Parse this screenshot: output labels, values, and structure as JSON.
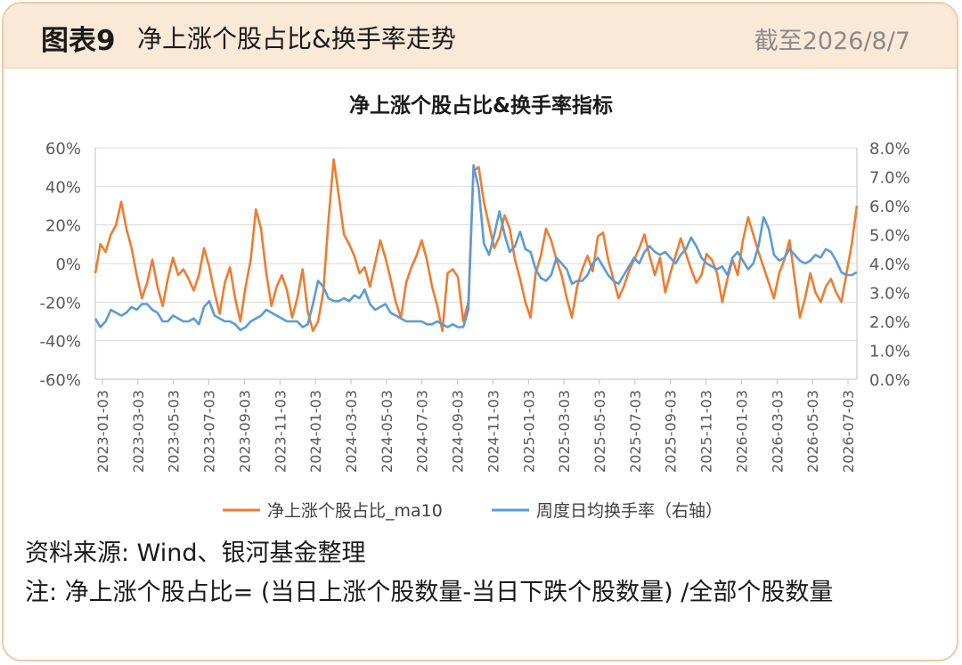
{
  "header": {
    "figure_label": "图表9",
    "title": "净上涨个股占比&换手率走势",
    "as_of": "截至2026/8/7"
  },
  "footer": {
    "source": "资料来源: Wind、银河基金整理",
    "note": "注: 净上涨个股占比= (当日上涨个股数量-当日下跌个股数量) /全部个股数量"
  },
  "colors": {
    "orange": "#ed7d31",
    "blue": "#5b9bd5",
    "header_bg": "#fbe9d8",
    "border": "#f0c9a3"
  },
  "chart_data": {
    "type": "line",
    "title": "净上涨个股占比&换手率指标",
    "y_left": {
      "ylim": [
        -60,
        60
      ],
      "ticks": [
        "60%",
        "40%",
        "20%",
        "0%",
        "-20%",
        "-40%",
        "-60%"
      ]
    },
    "y_right": {
      "ylim": [
        0,
        8
      ],
      "ticks": [
        "8.0%",
        "7.0%",
        "6.0%",
        "5.0%",
        "4.0%",
        "3.0%",
        "2.0%",
        "1.0%",
        "0.0%"
      ]
    },
    "x_ticks": [
      "2023-01-03",
      "2023-03-03",
      "2023-05-03",
      "2023-07-03",
      "2023-09-03",
      "2023-11-03",
      "2024-01-03",
      "2024-03-03",
      "2024-05-03",
      "2024-07-03",
      "2024-09-03",
      "2024-11-03",
      "2025-01-03",
      "2025-03-03",
      "2025-05-03",
      "2025-07-03",
      "2025-09-03",
      "2025-11-03",
      "2026-01-03",
      "2026-03-03",
      "2026-05-03",
      "2026-07-03"
    ],
    "grid": true,
    "legend_position": "bottom",
    "series": [
      {
        "name": "净上涨个股占比_ma10",
        "axis": "left",
        "color": "#ed7d31",
        "points": [
          [
            0,
            -5
          ],
          [
            1,
            10
          ],
          [
            2,
            6
          ],
          [
            3,
            15
          ],
          [
            4,
            20
          ],
          [
            5,
            32
          ],
          [
            6,
            18
          ],
          [
            7,
            8
          ],
          [
            8,
            -6
          ],
          [
            9,
            -18
          ],
          [
            10,
            -10
          ],
          [
            11,
            2
          ],
          [
            12,
            -12
          ],
          [
            13,
            -22
          ],
          [
            14,
            -8
          ],
          [
            15,
            3
          ],
          [
            16,
            -6
          ],
          [
            17,
            -3
          ],
          [
            18,
            -8
          ],
          [
            19,
            -14
          ],
          [
            20,
            -6
          ],
          [
            21,
            8
          ],
          [
            22,
            -2
          ],
          [
            23,
            -15
          ],
          [
            24,
            -26
          ],
          [
            25,
            -10
          ],
          [
            26,
            -2
          ],
          [
            27,
            -18
          ],
          [
            28,
            -30
          ],
          [
            29,
            -12
          ],
          [
            30,
            2
          ],
          [
            31,
            28
          ],
          [
            32,
            18
          ],
          [
            33,
            -5
          ],
          [
            34,
            -22
          ],
          [
            35,
            -12
          ],
          [
            36,
            -6
          ],
          [
            37,
            -14
          ],
          [
            38,
            -28
          ],
          [
            39,
            -18
          ],
          [
            40,
            -3
          ],
          [
            41,
            -25
          ],
          [
            42,
            -35
          ],
          [
            43,
            -30
          ],
          [
            44,
            -15
          ],
          [
            45,
            22
          ],
          [
            46,
            54
          ],
          [
            47,
            35
          ],
          [
            48,
            15
          ],
          [
            49,
            10
          ],
          [
            50,
            4
          ],
          [
            51,
            -5
          ],
          [
            52,
            -2
          ],
          [
            53,
            -12
          ],
          [
            54,
            0
          ],
          [
            55,
            12
          ],
          [
            56,
            3
          ],
          [
            57,
            -8
          ],
          [
            58,
            -20
          ],
          [
            59,
            -28
          ],
          [
            60,
            -10
          ],
          [
            61,
            -2
          ],
          [
            62,
            4
          ],
          [
            63,
            12
          ],
          [
            64,
            2
          ],
          [
            65,
            -12
          ],
          [
            66,
            -22
          ],
          [
            67,
            -35
          ],
          [
            68,
            -5
          ],
          [
            69,
            -3
          ],
          [
            70,
            -7
          ],
          [
            71,
            -30
          ],
          [
            72,
            -20
          ],
          [
            73,
            48
          ],
          [
            74,
            50
          ],
          [
            75,
            32
          ],
          [
            76,
            20
          ],
          [
            77,
            8
          ],
          [
            78,
            14
          ],
          [
            79,
            25
          ],
          [
            80,
            18
          ],
          [
            81,
            2
          ],
          [
            82,
            -8
          ],
          [
            83,
            -20
          ],
          [
            84,
            -28
          ],
          [
            85,
            -5
          ],
          [
            86,
            4
          ],
          [
            87,
            18
          ],
          [
            88,
            12
          ],
          [
            89,
            2
          ],
          [
            90,
            -6
          ],
          [
            91,
            -18
          ],
          [
            92,
            -28
          ],
          [
            93,
            -12
          ],
          [
            94,
            -3
          ],
          [
            95,
            4
          ],
          [
            96,
            -4
          ],
          [
            97,
            14
          ],
          [
            98,
            16
          ],
          [
            99,
            2
          ],
          [
            100,
            -8
          ],
          [
            101,
            -18
          ],
          [
            102,
            -12
          ],
          [
            103,
            -4
          ],
          [
            104,
            2
          ],
          [
            105,
            8
          ],
          [
            106,
            15
          ],
          [
            107,
            4
          ],
          [
            108,
            -6
          ],
          [
            109,
            3
          ],
          [
            110,
            -15
          ],
          [
            111,
            -5
          ],
          [
            112,
            4
          ],
          [
            113,
            13
          ],
          [
            114,
            5
          ],
          [
            115,
            -3
          ],
          [
            116,
            -10
          ],
          [
            117,
            -6
          ],
          [
            118,
            5
          ],
          [
            119,
            2
          ],
          [
            120,
            -5
          ],
          [
            121,
            -20
          ],
          [
            122,
            -8
          ],
          [
            123,
            2
          ],
          [
            124,
            -6
          ],
          [
            125,
            12
          ],
          [
            126,
            24
          ],
          [
            127,
            15
          ],
          [
            128,
            6
          ],
          [
            129,
            -2
          ],
          [
            130,
            -10
          ],
          [
            131,
            -18
          ],
          [
            132,
            -5
          ],
          [
            133,
            2
          ],
          [
            134,
            12
          ],
          [
            135,
            -8
          ],
          [
            136,
            -28
          ],
          [
            137,
            -18
          ],
          [
            138,
            -5
          ],
          [
            139,
            -15
          ],
          [
            140,
            -20
          ],
          [
            141,
            -12
          ],
          [
            142,
            -8
          ],
          [
            143,
            -15
          ],
          [
            144,
            -20
          ],
          [
            145,
            -5
          ],
          [
            146,
            10
          ],
          [
            147,
            30
          ]
        ]
      },
      {
        "name": "周度日均换手率（右轴）",
        "axis": "right",
        "color": "#5b9bd5",
        "points": [
          [
            0,
            2.1
          ],
          [
            1,
            1.8
          ],
          [
            2,
            2.0
          ],
          [
            3,
            2.4
          ],
          [
            4,
            2.3
          ],
          [
            5,
            2.2
          ],
          [
            6,
            2.3
          ],
          [
            7,
            2.5
          ],
          [
            8,
            2.4
          ],
          [
            9,
            2.6
          ],
          [
            10,
            2.6
          ],
          [
            11,
            2.4
          ],
          [
            12,
            2.3
          ],
          [
            13,
            2.0
          ],
          [
            14,
            2.0
          ],
          [
            15,
            2.2
          ],
          [
            16,
            2.1
          ],
          [
            17,
            2.0
          ],
          [
            18,
            2.0
          ],
          [
            19,
            2.1
          ],
          [
            20,
            1.9
          ],
          [
            21,
            2.5
          ],
          [
            22,
            2.7
          ],
          [
            23,
            2.2
          ],
          [
            24,
            2.1
          ],
          [
            25,
            2.0
          ],
          [
            26,
            2.0
          ],
          [
            27,
            1.9
          ],
          [
            28,
            1.7
          ],
          [
            29,
            1.8
          ],
          [
            30,
            2.0
          ],
          [
            31,
            2.1
          ],
          [
            32,
            2.2
          ],
          [
            33,
            2.4
          ],
          [
            34,
            2.3
          ],
          [
            35,
            2.2
          ],
          [
            36,
            2.1
          ],
          [
            37,
            2.0
          ],
          [
            38,
            2.0
          ],
          [
            39,
            2.0
          ],
          [
            40,
            1.8
          ],
          [
            41,
            1.9
          ],
          [
            42,
            2.6
          ],
          [
            43,
            3.4
          ],
          [
            44,
            3.2
          ],
          [
            45,
            2.8
          ],
          [
            46,
            2.7
          ],
          [
            47,
            2.7
          ],
          [
            48,
            2.8
          ],
          [
            49,
            2.7
          ],
          [
            50,
            2.9
          ],
          [
            51,
            2.8
          ],
          [
            52,
            3.1
          ],
          [
            53,
            2.6
          ],
          [
            54,
            2.4
          ],
          [
            55,
            2.5
          ],
          [
            56,
            2.6
          ],
          [
            57,
            2.3
          ],
          [
            58,
            2.2
          ],
          [
            59,
            2.1
          ],
          [
            60,
            2.0
          ],
          [
            61,
            2.0
          ],
          [
            62,
            2.0
          ],
          [
            63,
            2.0
          ],
          [
            64,
            1.9
          ],
          [
            65,
            1.9
          ],
          [
            66,
            2.0
          ],
          [
            67,
            1.9
          ],
          [
            68,
            1.8
          ],
          [
            69,
            1.9
          ],
          [
            70,
            1.8
          ],
          [
            71,
            1.8
          ],
          [
            72,
            2.4
          ],
          [
            73,
            7.4
          ],
          [
            74,
            6.6
          ],
          [
            75,
            4.7
          ],
          [
            76,
            4.3
          ],
          [
            77,
            5.0
          ],
          [
            78,
            5.8
          ],
          [
            79,
            5.0
          ],
          [
            80,
            4.4
          ],
          [
            81,
            4.6
          ],
          [
            82,
            5.1
          ],
          [
            83,
            4.5
          ],
          [
            84,
            4.4
          ],
          [
            85,
            3.8
          ],
          [
            86,
            3.5
          ],
          [
            87,
            3.4
          ],
          [
            88,
            3.6
          ],
          [
            89,
            4.2
          ],
          [
            90,
            4.0
          ],
          [
            91,
            3.8
          ],
          [
            92,
            3.3
          ],
          [
            93,
            3.4
          ],
          [
            94,
            3.4
          ],
          [
            95,
            3.6
          ],
          [
            96,
            4.0
          ],
          [
            97,
            4.2
          ],
          [
            98,
            3.9
          ],
          [
            99,
            3.6
          ],
          [
            100,
            3.4
          ],
          [
            101,
            3.3
          ],
          [
            102,
            3.6
          ],
          [
            103,
            3.9
          ],
          [
            104,
            4.2
          ],
          [
            105,
            4.0
          ],
          [
            106,
            4.4
          ],
          [
            107,
            4.6
          ],
          [
            108,
            4.4
          ],
          [
            109,
            4.3
          ],
          [
            110,
            4.4
          ],
          [
            111,
            4.2
          ],
          [
            112,
            4.0
          ],
          [
            113,
            4.3
          ],
          [
            114,
            4.5
          ],
          [
            115,
            4.9
          ],
          [
            116,
            4.6
          ],
          [
            117,
            4.2
          ],
          [
            118,
            4.0
          ],
          [
            119,
            3.9
          ],
          [
            120,
            3.8
          ],
          [
            121,
            3.9
          ],
          [
            122,
            3.6
          ],
          [
            123,
            4.2
          ],
          [
            124,
            4.4
          ],
          [
            125,
            4.1
          ],
          [
            126,
            3.8
          ],
          [
            127,
            4.0
          ],
          [
            128,
            4.6
          ],
          [
            129,
            5.6
          ],
          [
            130,
            5.2
          ],
          [
            131,
            4.3
          ],
          [
            132,
            4.1
          ],
          [
            133,
            4.2
          ],
          [
            134,
            4.5
          ],
          [
            135,
            4.3
          ],
          [
            136,
            4.1
          ],
          [
            137,
            4.0
          ],
          [
            138,
            4.1
          ],
          [
            139,
            4.3
          ],
          [
            140,
            4.2
          ],
          [
            141,
            4.5
          ],
          [
            142,
            4.4
          ],
          [
            143,
            4.1
          ],
          [
            144,
            3.7
          ],
          [
            145,
            3.6
          ],
          [
            146,
            3.6
          ],
          [
            147,
            3.7
          ]
        ]
      }
    ]
  }
}
